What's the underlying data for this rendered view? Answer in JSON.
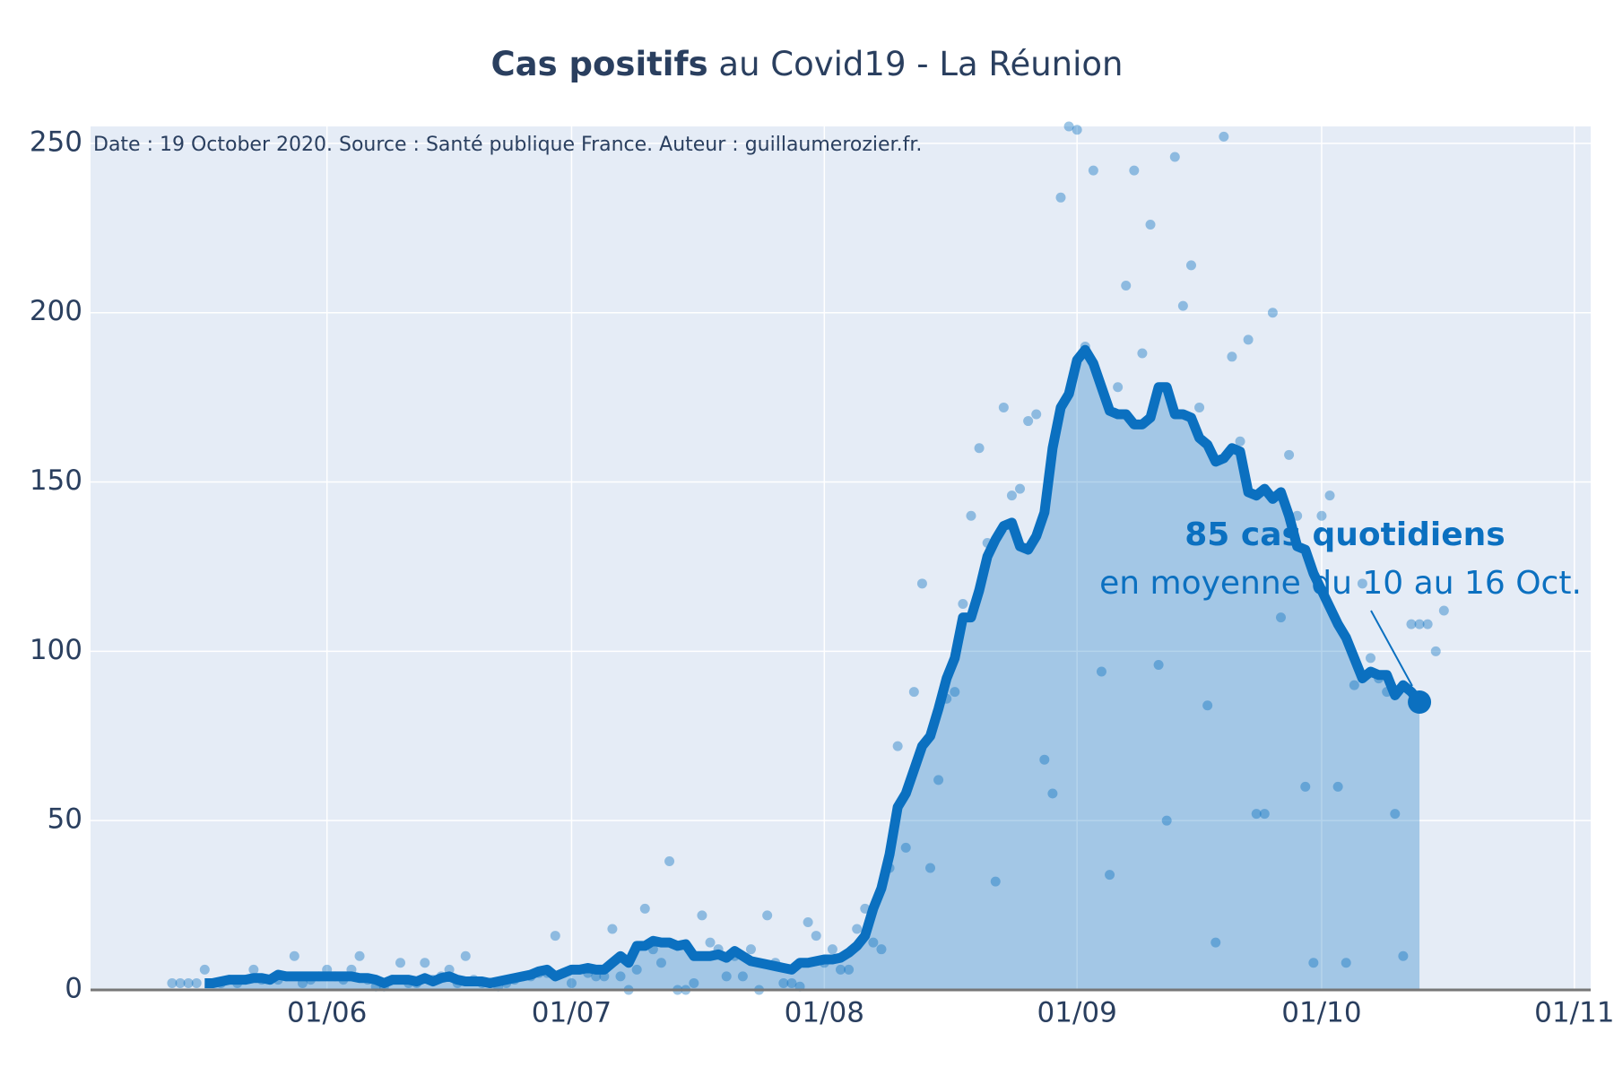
{
  "chart_data": {
    "type": "line",
    "title": [
      "Cas positifs",
      "au Covid19 - La Réunion"
    ],
    "subtitle": "Date : 19 October 2020. Source : Santé publique France. Auteur : guillaumerozier.fr.",
    "annotation": {
      "title": "85 cas quotidiens",
      "text": "en moyenne du 10 au 16 Oct."
    },
    "x": [
      "13/05",
      "14/05",
      "15/05",
      "16/05",
      "17/05",
      "18/05",
      "19/05",
      "20/05",
      "21/05",
      "22/05",
      "23/05",
      "24/05",
      "25/05",
      "26/05",
      "27/05",
      "28/05",
      "29/05",
      "30/05",
      "31/05",
      "01/06",
      "02/06",
      "03/06",
      "04/06",
      "05/06",
      "06/06",
      "07/06",
      "08/06",
      "09/06",
      "10/06",
      "11/06",
      "12/06",
      "13/06",
      "14/06",
      "15/06",
      "16/06",
      "17/06",
      "18/06",
      "19/06",
      "20/06",
      "21/06",
      "22/06",
      "23/06",
      "24/06",
      "25/06",
      "26/06",
      "27/06",
      "28/06",
      "29/06",
      "30/06",
      "01/07",
      "02/07",
      "03/07",
      "04/07",
      "05/07",
      "06/07",
      "07/07",
      "08/07",
      "09/07",
      "10/07",
      "11/07",
      "12/07",
      "13/07",
      "14/07",
      "15/07",
      "16/07",
      "17/07",
      "18/07",
      "19/07",
      "20/07",
      "21/07",
      "22/07",
      "23/07",
      "24/07",
      "25/07",
      "26/07",
      "27/07",
      "28/07",
      "29/07",
      "30/07",
      "31/07",
      "01/08",
      "02/08",
      "03/08",
      "04/08",
      "05/08",
      "06/08",
      "07/08",
      "08/08",
      "09/08",
      "10/08",
      "11/08",
      "12/08",
      "13/08",
      "14/08",
      "15/08",
      "16/08",
      "17/08",
      "18/08",
      "19/08",
      "20/08",
      "21/08",
      "22/08",
      "23/08",
      "24/08",
      "25/08",
      "26/08",
      "27/08",
      "28/08",
      "29/08",
      "30/08",
      "31/08",
      "01/09",
      "02/09",
      "03/09",
      "04/09",
      "05/09",
      "06/09",
      "07/09",
      "08/09",
      "09/09",
      "10/09",
      "11/09",
      "12/09",
      "13/09",
      "14/09",
      "15/09",
      "16/09",
      "17/09",
      "18/09",
      "19/09",
      "20/09",
      "21/09",
      "22/09",
      "23/09",
      "24/09",
      "25/09",
      "26/09",
      "27/09",
      "28/09",
      "29/09",
      "30/09",
      "01/10",
      "02/10",
      "03/10",
      "04/10",
      "05/10",
      "06/10",
      "07/10",
      "08/10",
      "09/10",
      "10/10",
      "11/10",
      "12/10",
      "13/10",
      "14/10",
      "15/10",
      "16/10"
    ],
    "series": [
      {
        "type": "scatter",
        "color": "rgba(11,112,192,0.4)",
        "values": [
          2,
          2,
          2,
          2,
          6,
          2,
          2,
          3,
          2,
          3,
          6,
          3,
          3,
          3,
          4,
          10,
          2,
          3,
          4,
          6,
          4,
          3,
          6,
          10,
          3,
          1,
          1,
          3,
          8,
          2,
          2,
          8,
          3,
          4,
          6,
          2,
          10,
          3,
          2,
          2,
          1,
          2,
          3,
          4,
          4,
          5,
          5,
          16,
          5,
          2,
          6,
          5,
          4,
          4,
          18,
          4,
          0,
          6,
          24,
          12,
          8,
          38,
          0,
          0,
          2,
          22,
          14,
          12,
          4,
          10,
          4,
          12,
          0,
          22,
          8,
          2,
          2,
          1,
          20,
          16,
          8,
          12,
          6,
          6,
          18,
          24,
          14,
          12,
          36,
          72,
          42,
          88,
          120,
          36,
          62,
          86,
          88,
          114,
          140,
          160,
          132,
          32,
          172,
          146,
          148,
          168,
          170,
          68,
          58,
          234,
          255,
          254,
          190,
          242,
          94,
          34,
          178,
          208,
          242,
          188,
          226,
          96,
          50,
          246,
          202,
          214,
          172,
          84,
          14,
          252,
          187,
          162,
          192,
          52,
          52,
          200,
          110,
          158,
          140,
          60,
          8,
          140,
          146,
          60,
          8,
          90,
          120,
          98,
          92,
          88,
          52,
          10,
          108,
          108,
          108,
          100,
          112
        ]
      },
      {
        "type": "line",
        "color": "#0b70c0",
        "fill": true,
        "values": [
          null,
          null,
          null,
          null,
          2,
          2,
          2.5,
          3,
          3,
          3,
          3.5,
          3.5,
          3,
          4.5,
          4,
          4,
          4,
          4,
          4,
          4,
          4,
          4,
          4,
          3.5,
          3.5,
          3,
          2,
          3,
          3,
          3,
          2.5,
          3.5,
          2.5,
          3.5,
          4,
          3,
          2.5,
          2.5,
          2.5,
          2,
          2.5,
          3,
          3.5,
          4,
          4.5,
          5.5,
          6,
          4,
          5,
          6,
          6,
          6.5,
          6,
          6,
          8,
          10,
          8,
          13,
          13,
          14.5,
          14,
          14,
          13,
          13.5,
          10,
          10,
          10,
          10.5,
          9.5,
          11.5,
          10,
          8.5,
          8,
          7.5,
          7,
          6.5,
          6,
          8,
          8,
          8.5,
          9,
          9,
          9.5,
          11,
          13,
          16,
          24,
          30,
          40,
          54,
          58,
          65,
          72,
          75,
          83,
          92,
          98,
          110,
          110,
          118,
          128,
          133,
          137,
          138,
          131,
          130,
          134,
          141,
          160,
          172,
          176,
          186,
          189,
          185,
          178,
          171,
          170,
          170,
          167,
          167,
          169,
          178,
          178,
          170,
          170,
          169,
          163,
          161,
          156,
          157,
          160,
          159,
          147,
          146,
          148,
          145,
          147,
          140,
          131,
          130,
          123,
          118,
          113,
          108,
          104,
          98,
          92,
          94,
          93,
          93,
          87,
          90,
          88,
          85,
          null,
          null,
          null
        ]
      }
    ],
    "xlim": [
      "03/05",
      "03/11"
    ],
    "xticks": [
      "01/06",
      "01/07",
      "01/08",
      "01/09",
      "01/10",
      "01/11"
    ],
    "ylim": [
      0,
      255
    ],
    "yticks": [
      0,
      50,
      100,
      150,
      200,
      250
    ],
    "grid": true,
    "background": "#e5ecf6"
  }
}
